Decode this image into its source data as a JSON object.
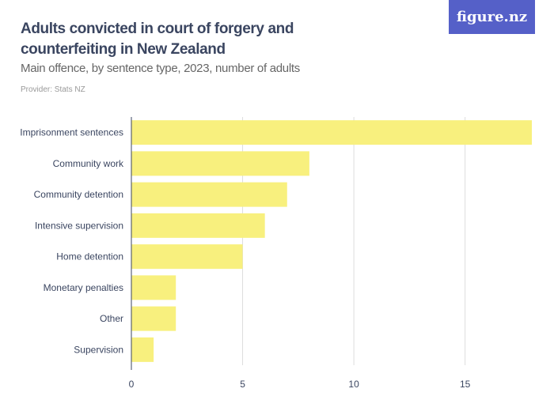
{
  "header": {
    "title": "Adults convicted in court of forgery and counterfeiting in New Zealand",
    "subtitle": "Main offence, by sentence type, 2023, number of adults",
    "provider": "Provider: Stats NZ",
    "logo": "figure.nz",
    "logo_color": "#5560c8"
  },
  "chart_data": {
    "type": "bar",
    "orientation": "horizontal",
    "categories": [
      "Imprisonment sentences",
      "Community work",
      "Community detention",
      "Intensive supervision",
      "Home detention",
      "Monetary penalties",
      "Other",
      "Supervision"
    ],
    "values": [
      18,
      8,
      7,
      6,
      5,
      2,
      2,
      1
    ],
    "title": "Adults convicted in court of forgery and counterfeiting in New Zealand",
    "subtitle": "Main offence, by sentence type, 2023, number of adults",
    "xlim": [
      0,
      18
    ],
    "xticks": [
      0,
      5,
      10,
      15
    ],
    "grid": true,
    "bar_color": "#f8f07e"
  }
}
